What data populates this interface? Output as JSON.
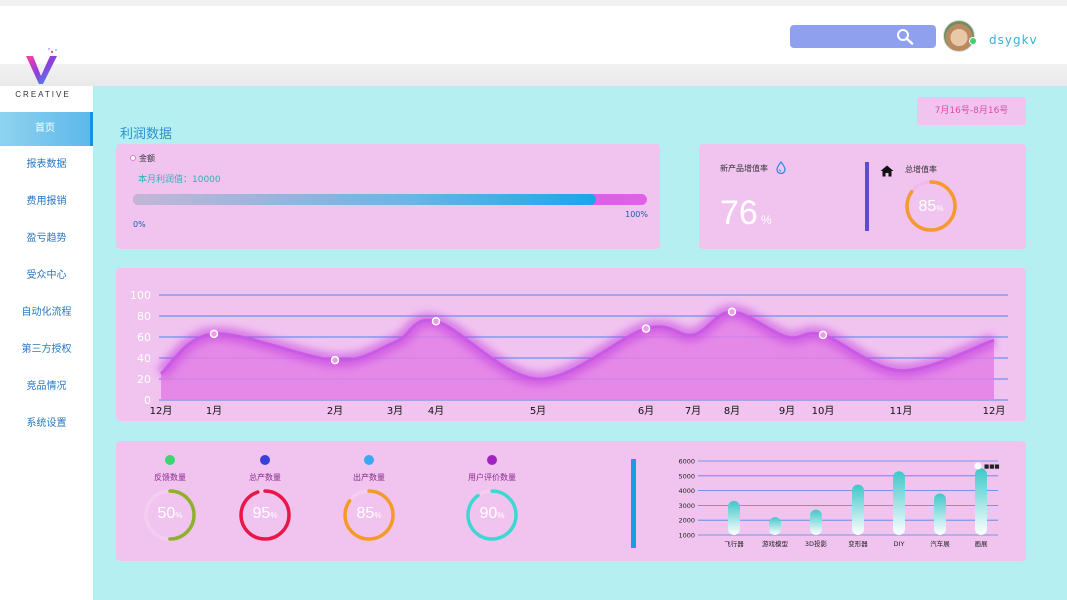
{
  "brand": {
    "logo_text": "CREATIVE",
    "tagline": ""
  },
  "header": {
    "username": "dsygkv",
    "search_placeholder": ""
  },
  "sidebar": {
    "items": [
      {
        "label": "首页",
        "active": true
      },
      {
        "label": "报表数据"
      },
      {
        "label": "费用报销"
      },
      {
        "label": "盈亏趋势"
      },
      {
        "label": "受众中心"
      },
      {
        "label": "自动化流程"
      },
      {
        "label": "第三方授权"
      },
      {
        "label": "竞品情况"
      },
      {
        "label": "系统设置"
      }
    ]
  },
  "main": {
    "title": "利润数据",
    "date_range": "7月16号-8月16号"
  },
  "profit": {
    "legend": "金额",
    "label": "本月利润值：10000",
    "progress": 0.9,
    "min_label": "0%",
    "max_label": "100%"
  },
  "growth": {
    "new_product_label": "新产品增值率",
    "new_product_value": "76",
    "new_product_unit": "%",
    "total_label": "总增值率",
    "total_value": "85",
    "total_unit": "%",
    "total_percent": 85
  },
  "stats": [
    {
      "label": "反馈数量",
      "value": "50",
      "unit": "%",
      "percent": 50,
      "color": "#8fb02c",
      "dot": "#3ed46e"
    },
    {
      "label": "总产数量",
      "value": "95",
      "unit": "%",
      "percent": 95,
      "color": "#e8174a",
      "dot": "#3a3fd6"
    },
    {
      "label": "出产数量",
      "value": "85",
      "unit": "%",
      "percent": 85,
      "color": "#f49a2a",
      "dot": "#3aa8f0"
    },
    {
      "label": "用户评价数量",
      "value": "90",
      "unit": "%",
      "percent": 90,
      "color": "#3ed7d2",
      "dot": "#a223c4"
    }
  ],
  "colors": {
    "accent": "#2d8fd8",
    "card": "#f1c4f0",
    "main_bg": "#b5eff2"
  },
  "chart_data": [
    {
      "type": "area",
      "title": "",
      "x": [
        "12月",
        "1月",
        "2月",
        "3月",
        "4月",
        "5月",
        "6月",
        "7月",
        "8月",
        "9月",
        "10月",
        "11月",
        "12月"
      ],
      "y_ticks": [
        0,
        20,
        40,
        60,
        80,
        100
      ],
      "ylim": [
        0,
        100
      ],
      "series": [
        {
          "values": [
            25,
            63,
            38,
            55,
            75,
            20,
            68,
            62,
            84,
            60,
            62,
            28,
            57
          ]
        }
      ],
      "markers": [
        {
          "x": "1月",
          "y": 63
        },
        {
          "x": "2月",
          "y": 38
        },
        {
          "x": "4月",
          "y": 75
        },
        {
          "x": "6月",
          "y": 68
        },
        {
          "x": "8月",
          "y": 84
        },
        {
          "x": "10月",
          "y": 62
        }
      ],
      "grid": true
    },
    {
      "type": "bar",
      "title": "",
      "categories": [
        "飞行器",
        "游戏模型",
        "3D投影",
        "变形器",
        "DIY",
        "汽车展",
        "画展"
      ],
      "values": [
        2900,
        1800,
        2300,
        4000,
        4900,
        3400,
        5100
      ],
      "y_ticks": [
        1000,
        2000,
        3000,
        4000,
        5000,
        6000
      ],
      "ylim": [
        1000,
        6000
      ],
      "legend": "■■■",
      "grid": true
    }
  ]
}
